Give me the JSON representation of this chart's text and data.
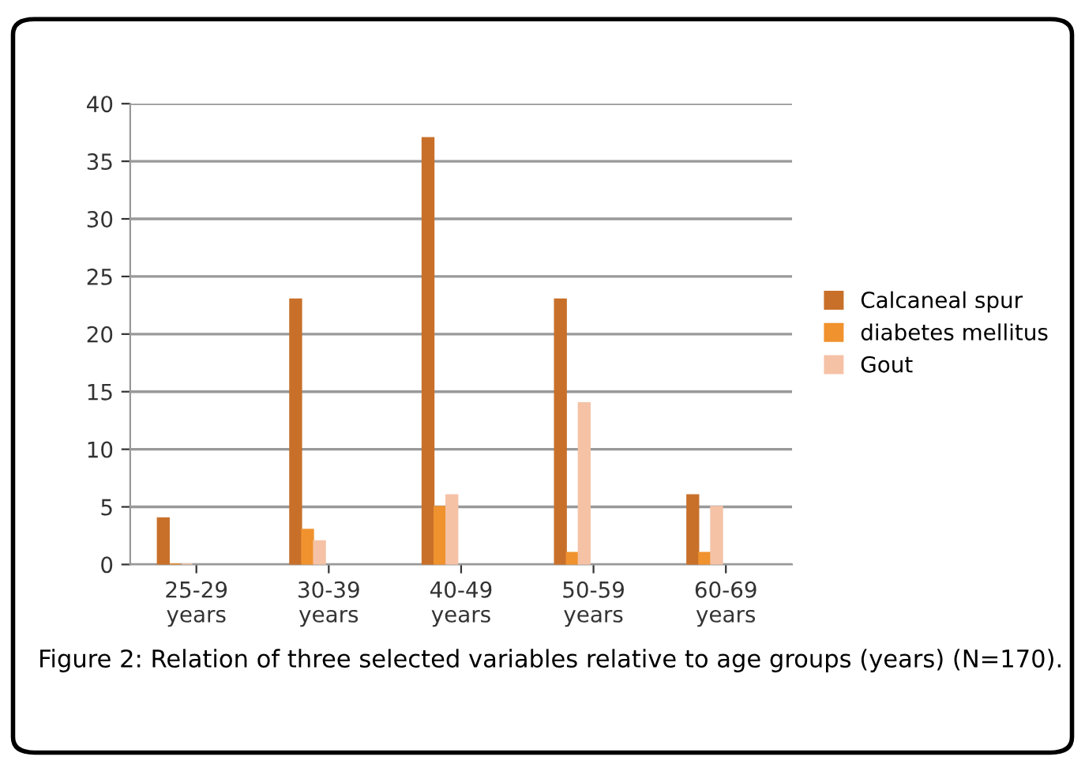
{
  "chart_data": {
    "type": "bar",
    "categories": [
      "25-29\nyears",
      "30-39\nyears",
      "40-49\nyears",
      "50-59\nyears",
      "60-69\nyears"
    ],
    "series": [
      {
        "name": "Calcaneal spur",
        "color": "#c8702a",
        "values": [
          4,
          23,
          37,
          23,
          6
        ]
      },
      {
        "name": "diabetes mellitus",
        "color": "#f0922e",
        "values": [
          0,
          3,
          5,
          1,
          1
        ]
      },
      {
        "name": "Gout",
        "color": "#f5c2a6",
        "values": [
          0,
          2,
          6,
          14,
          5
        ]
      }
    ],
    "ylim": [
      0,
      40
    ],
    "yticks": [
      0,
      5,
      10,
      15,
      20,
      25,
      30,
      35,
      40
    ],
    "grid": "y",
    "legend": "right",
    "annotations": [
      "Figure 2: Relation of three selected variables relative to age groups (years) (N=170)."
    ]
  }
}
